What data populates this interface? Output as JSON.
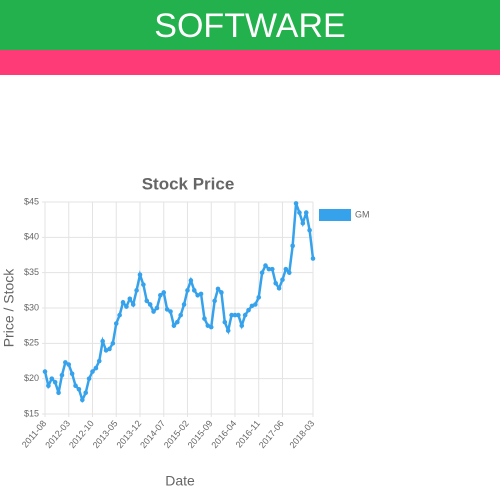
{
  "header": {
    "title": "SOFTWARE"
  },
  "chart_data": {
    "type": "line",
    "title": "Stock Price",
    "x_label": "Date",
    "y_label": "Price / Stock",
    "categories": [
      "2011-08",
      null,
      null,
      null,
      null,
      null,
      null,
      "2012-03",
      null,
      null,
      null,
      null,
      null,
      null,
      "2012-10",
      null,
      null,
      null,
      null,
      null,
      null,
      "2013-05",
      null,
      null,
      null,
      null,
      null,
      null,
      "2013-12",
      null,
      null,
      null,
      null,
      null,
      null,
      "2014-07",
      null,
      null,
      null,
      null,
      null,
      null,
      "2015-02",
      null,
      null,
      null,
      null,
      null,
      null,
      "2015-09",
      null,
      null,
      null,
      null,
      null,
      null,
      "2016-04",
      null,
      null,
      null,
      null,
      null,
      null,
      "2016-11",
      null,
      null,
      null,
      null,
      null,
      null,
      "2017-06",
      null,
      null,
      null,
      null,
      null,
      null,
      null,
      null,
      "2018-03"
    ],
    "series": [
      {
        "name": "GM",
        "color": "#36a2eb",
        "values": [
          21,
          19,
          20,
          19.5,
          18,
          20.5,
          22.3,
          22,
          20.7,
          19,
          18.5,
          17,
          18,
          20,
          21,
          21.5,
          22.5,
          25.3,
          24,
          24.2,
          25,
          27.8,
          29,
          30.8,
          30.2,
          31.3,
          30.5,
          32.5,
          34.7,
          33.3,
          31,
          30.5,
          29.5,
          30,
          31.8,
          32.2,
          29.8,
          29.5,
          27.5,
          28,
          29,
          30.5,
          32.5,
          33.9,
          32.5,
          31.8,
          32,
          28.5,
          27.5,
          27.3,
          31,
          32.7,
          32.2,
          28,
          26.8,
          29,
          29,
          29,
          27.5,
          29,
          29.7,
          30.3,
          30.5,
          31.5,
          35,
          36,
          35.5,
          35.5,
          33.5,
          32.8,
          34,
          35.5,
          35,
          38.8,
          44.8,
          43.5,
          42,
          43.5,
          41,
          37
        ]
      }
    ],
    "ylim": [
      15,
      45
    ],
    "yticks": [
      {
        "value": 15,
        "label": "$15"
      },
      {
        "value": 20,
        "label": "$20"
      },
      {
        "value": 25,
        "label": "$25"
      },
      {
        "value": 30,
        "label": "$30"
      },
      {
        "value": 35,
        "label": "$35"
      },
      {
        "value": 40,
        "label": "$40"
      },
      {
        "value": 45,
        "label": "$45"
      }
    ],
    "grid": true,
    "legend": "right"
  }
}
